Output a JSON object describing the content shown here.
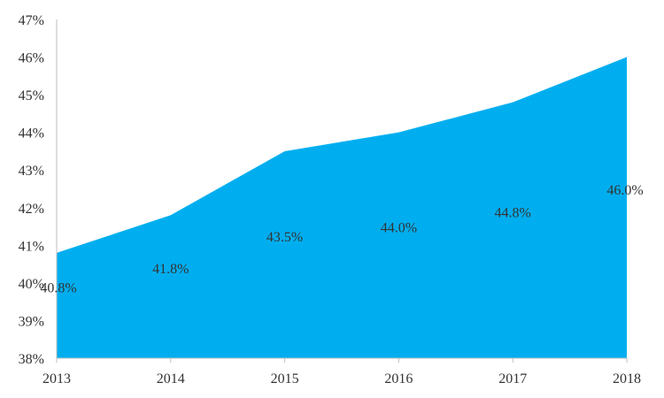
{
  "chart_data": {
    "type": "area",
    "categories": [
      "2013",
      "2014",
      "2015",
      "2016",
      "2017",
      "2018"
    ],
    "series": [
      {
        "values": [
          40.8,
          41.8,
          43.5,
          44.0,
          44.8,
          46.0
        ],
        "data_labels": [
          "40.8%",
          "41.8%",
          "43.5%",
          "44.0%",
          "44.8%",
          "46.0%"
        ]
      }
    ],
    "y_ticks": [
      "38%",
      "39%",
      "40%",
      "41%",
      "42%",
      "43%",
      "44%",
      "45%",
      "46%",
      "47%"
    ],
    "ylim": [
      38,
      47
    ],
    "grid": false,
    "legend": "none",
    "colors": {
      "area": "#00aeef",
      "axis": "#bfbfbf",
      "text": "#333333"
    }
  }
}
